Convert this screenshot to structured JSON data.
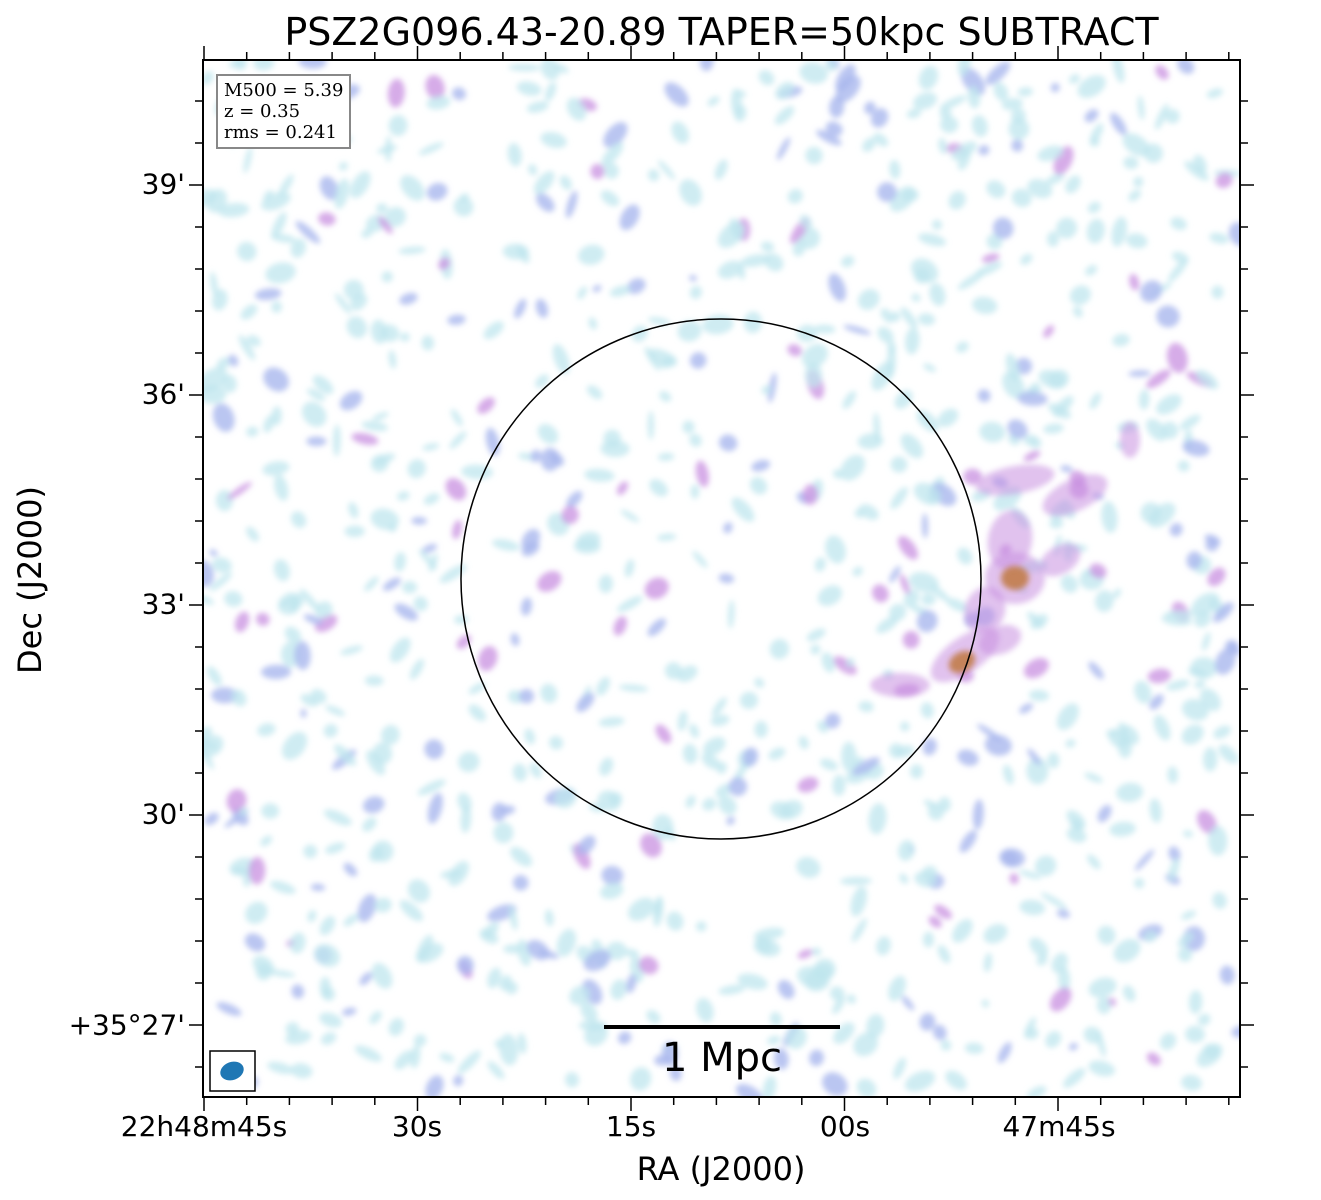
{
  "figure": {
    "title": "PSZ2G096.43-20.89 TAPER=50kpc SUBTRACT",
    "xlabel": "RA (J2000)",
    "ylabel": "Dec (J2000)",
    "y_ticks": [
      "39'",
      "36'",
      "33'",
      "30'",
      "+35°27'"
    ],
    "x_ticks": [
      "22h48m45s",
      "30s",
      "15s",
      "00s",
      "47m45s"
    ],
    "info": {
      "m500": "M500 = 5.39",
      "z": "z = 0.35",
      "rms": "rms = 0.241"
    },
    "scale_bar_label": "1 Mpc",
    "colors": {
      "circle": "#000000",
      "beam": "#1f77b4",
      "low": "#bfe6ee",
      "mid": "#a9b8ee",
      "high": "#c890e0",
      "peak": "#c07840"
    }
  }
}
